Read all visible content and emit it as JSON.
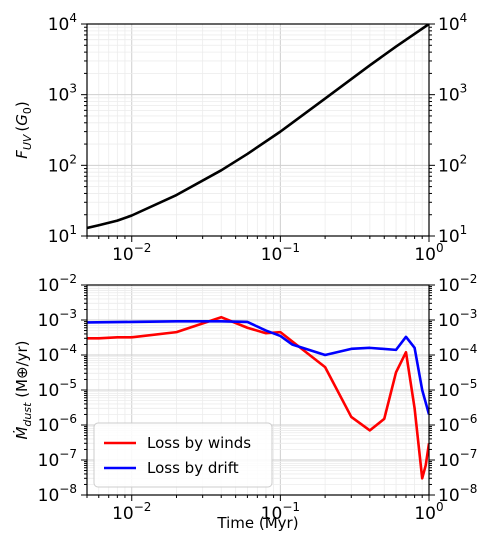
{
  "chart_data": [
    {
      "type": "line",
      "ylabel": "F_UV (G_0)",
      "xlabel": "",
      "xscale": "log",
      "yscale": "log",
      "xlim": [
        0.005,
        1
      ],
      "ylim": [
        10,
        10000
      ],
      "grid": true,
      "mirror_y_ticks": "right",
      "x_tick_labels": [
        "10^-2",
        "10^-1",
        "10^0"
      ],
      "y_tick_labels": [
        "10^1",
        "10^2",
        "10^3",
        "10^4"
      ],
      "series": [
        {
          "color": "#000000",
          "x": [
            0.005,
            0.006,
            0.008,
            0.01,
            0.02,
            0.04,
            0.06,
            0.1,
            0.2,
            0.4,
            0.6,
            1.0
          ],
          "y": [
            13,
            14.2,
            16.5,
            19.5,
            38,
            85,
            145,
            300,
            880,
            2600,
            4800,
            10000
          ]
        }
      ]
    },
    {
      "type": "line",
      "ylabel": "Mdot_dust (M⊕/yr)",
      "xlabel": "Time (Myr)",
      "xscale": "log",
      "yscale": "log",
      "xlim": [
        0.005,
        1
      ],
      "ylim": [
        1e-08,
        0.01
      ],
      "grid": true,
      "mirror_y_ticks": "right",
      "legend": "lower-left",
      "x_tick_labels": [
        "10^-2",
        "10^-1",
        "10^0"
      ],
      "y_tick_labels": [
        "10^-8",
        "10^-7",
        "10^-6",
        "10^-5",
        "10^-4",
        "10^-3",
        "10^-2"
      ],
      "series": [
        {
          "name": "Loss by winds",
          "color": "#ff0000",
          "x": [
            0.005,
            0.006,
            0.008,
            0.01,
            0.02,
            0.04,
            0.06,
            0.08,
            0.1,
            0.2,
            0.3,
            0.4,
            0.5,
            0.6,
            0.7,
            0.8,
            0.9,
            0.95,
            1.0
          ],
          "y": [
            0.0003,
            0.0003,
            0.00032,
            0.00032,
            0.00045,
            0.0012,
            0.0006,
            0.00042,
            0.00045,
            4.5e-05,
            1.7e-06,
            7e-07,
            1.5e-06,
            3.2e-05,
            0.00012,
            3e-06,
            3e-08,
            7e-08,
            3e-07
          ]
        },
        {
          "name": "Loss by drift",
          "color": "#0000ff",
          "x": [
            0.005,
            0.01,
            0.02,
            0.04,
            0.06,
            0.08,
            0.1,
            0.12,
            0.2,
            0.3,
            0.4,
            0.6,
            0.7,
            0.8,
            0.9,
            1.0
          ],
          "y": [
            0.00085,
            0.00088,
            0.00092,
            0.00092,
            0.00088,
            0.0005,
            0.00035,
            0.0002,
            0.0001,
            0.00015,
            0.00016,
            0.00014,
            0.00033,
            0.00016,
            1e-05,
            2e-06
          ]
        }
      ]
    }
  ]
}
